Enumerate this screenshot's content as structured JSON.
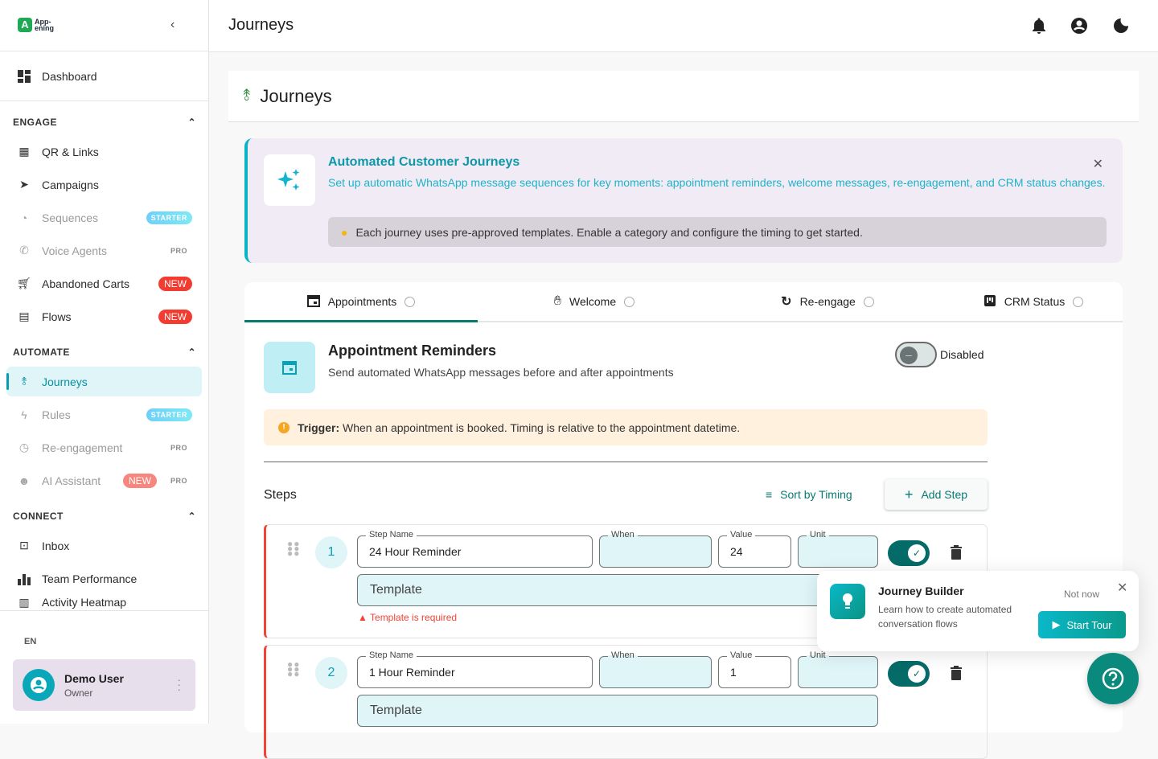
{
  "app": {
    "logo_text": "App-ening",
    "collapse_icon": "chevron-left-icon"
  },
  "sidebar": {
    "dashboard": "Dashboard",
    "sections": [
      {
        "title": "ENGAGE",
        "items": [
          {
            "label": "QR & Links",
            "icon": "qr-code-icon"
          },
          {
            "label": "Campaigns",
            "icon": "send-icon"
          },
          {
            "label": "Sequences",
            "icon": "timelapse-icon",
            "badge": "STARTER"
          },
          {
            "label": "Voice Agents",
            "icon": "phone-callback-icon",
            "badge": "PRO"
          },
          {
            "label": "Abandoned Carts",
            "icon": "cart-icon",
            "badge": "NEW"
          },
          {
            "label": "Flows",
            "icon": "flows-icon",
            "badge": "NEW"
          }
        ]
      },
      {
        "title": "AUTOMATE",
        "items": [
          {
            "label": "Journeys",
            "icon": "route-icon",
            "active": true
          },
          {
            "label": "Rules",
            "icon": "bolt-icon",
            "badge": "STARTER"
          },
          {
            "label": "Re-engagement",
            "icon": "clock-icon",
            "badge": "PRO"
          },
          {
            "label": "AI Assistant",
            "icon": "ai-head-icon",
            "badge": "NEW",
            "badge2": "PRO"
          }
        ]
      },
      {
        "title": "CONNECT",
        "items": [
          {
            "label": "Inbox",
            "icon": "inbox-icon"
          },
          {
            "label": "Team Performance",
            "icon": "bar-chart-icon"
          },
          {
            "label": "Activity Heatmap",
            "icon": "grid-icon"
          }
        ]
      }
    ],
    "language": "EN",
    "user": {
      "name": "Demo User",
      "role": "Owner"
    }
  },
  "header": {
    "title": "Journeys",
    "icons": [
      "bell-icon",
      "account-icon",
      "dark-mode-icon"
    ]
  },
  "page": {
    "title": "Journeys"
  },
  "banner": {
    "title": "Automated Customer Journeys",
    "description": "Set up automatic WhatsApp message sequences for key moments: appointment reminders, welcome messages, re-engagement, and CRM status changes.",
    "tip": "Each journey uses pre-approved templates. Enable a category and configure the timing to get started."
  },
  "tabs": [
    {
      "label": "Appointments",
      "icon": "calendar-icon",
      "active": true
    },
    {
      "label": "Welcome",
      "icon": "wave-icon"
    },
    {
      "label": "Re-engage",
      "icon": "refresh-icon"
    },
    {
      "label": "CRM Status",
      "icon": "kanban-icon"
    }
  ],
  "journey": {
    "title": "Appointment Reminders",
    "description": "Send automated WhatsApp messages before and after appointments",
    "status": "Disabled",
    "enabled": false,
    "trigger_label": "Trigger:",
    "trigger_text": "When an appointment is booked. Timing is relative to the appointment datetime.",
    "steps_label": "Steps",
    "sort_label": "Sort by Timing",
    "add_label": "Add Step",
    "field_labels": {
      "name": "Step Name",
      "when": "When",
      "value": "Value",
      "unit": "Unit",
      "template": "Template"
    },
    "steps": [
      {
        "number": "1",
        "name": "24 Hour Reminder",
        "when": "",
        "value": "24",
        "unit": "",
        "enabled": true,
        "error": "Template is required"
      },
      {
        "number": "2",
        "name": "1 Hour Reminder",
        "when": "",
        "value": "1",
        "unit": "",
        "enabled": true
      }
    ]
  },
  "tour": {
    "title": "Journey Builder",
    "description": "Learn how to create automated conversation flows",
    "not_now": "Not now",
    "start": "Start Tour"
  },
  "colors": {
    "accent": "#0a9db0",
    "primary": "#087a72",
    "error": "#f44336",
    "new_badge": "#f23c32"
  }
}
